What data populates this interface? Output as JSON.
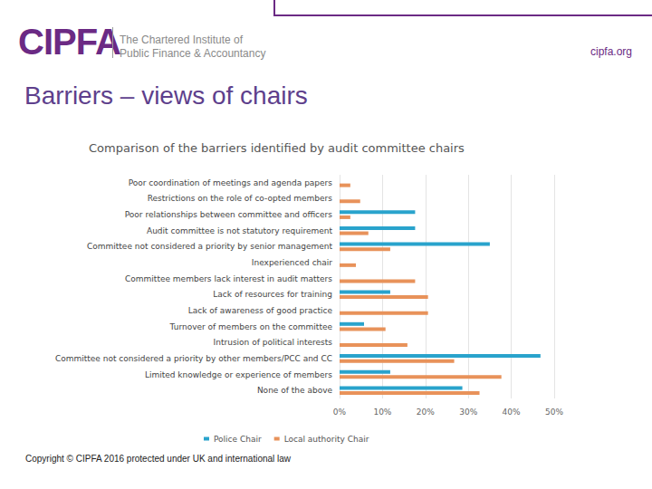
{
  "page": {
    "logo": "CIPFA",
    "organisation": [
      "The Chartered Institute of",
      "Public Finance & Accountancy"
    ],
    "website": "cipfa.org",
    "heading": "Barriers – views of chairs",
    "copyright": "Copyright © CIPFA 2016 protected under UK and international law"
  },
  "chart_data": {
    "type": "bar",
    "orientation": "horizontal",
    "title": "Comparison of the barriers identified by audit committee chairs",
    "categories": [
      "Poor coordination of meetings and agenda papers",
      "Restrictions on the role of co-opted members",
      "Poor relationships between committee and officers",
      "Audit committee is not statutory requirement",
      "Committee not considered a priority by senior management",
      "Inexperienced chair",
      "Committee members lack interest in audit matters",
      "Lack of resources for training",
      "Lack of awareness of good practice",
      "Turnover of members on the committee",
      "Intrusion of political interests",
      "Committee not considered a priority by other members/PCC and CC",
      "Limited knowledge or experience of members",
      "None of the above"
    ],
    "series": [
      {
        "name": "Police Chair",
        "color": "#29a3cc",
        "values": [
          0,
          0,
          17.6,
          17.6,
          35.0,
          0,
          0,
          11.8,
          0,
          5.7,
          0,
          46.8,
          11.8,
          28.6
        ]
      },
      {
        "name": "Local authority Chair",
        "color": "#e8925a",
        "values": [
          2.5,
          4.8,
          2.5,
          6.7,
          11.8,
          3.8,
          17.6,
          20.6,
          20.6,
          10.7,
          15.8,
          26.7,
          37.7,
          32.6
        ]
      }
    ],
    "xlim": [
      0,
      50
    ],
    "xticks": [
      {
        "value": 0,
        "label": "0%"
      },
      {
        "value": 10,
        "label": "10%"
      },
      {
        "value": 20,
        "label": "20%"
      },
      {
        "value": 30,
        "label": "30%"
      },
      {
        "value": 40,
        "label": "40%"
      },
      {
        "value": 50,
        "label": "50%"
      }
    ],
    "grid": true,
    "legend": "bottom"
  }
}
